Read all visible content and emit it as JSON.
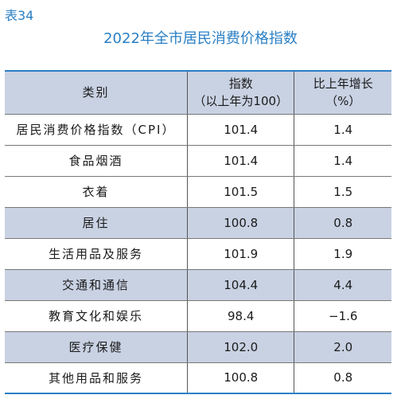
{
  "table_label": "表34",
  "title": "2022年全市居民消费价格指数",
  "headers": {
    "category": "类别",
    "index_line1": "指数",
    "index_line2": "（以上年为100）",
    "change_line1": "比上年增长",
    "change_line2": "（%）"
  },
  "rows": [
    {
      "category": "居民消费价格指数（CPI）",
      "index": "101.4",
      "change": "1.4"
    },
    {
      "category": "食品烟酒",
      "index": "101.4",
      "change": "1.4"
    },
    {
      "category": "衣着",
      "index": "101.5",
      "change": "1.5"
    },
    {
      "category": "居住",
      "index": "100.8",
      "change": "0.8"
    },
    {
      "category": "生活用品及服务",
      "index": "101.9",
      "change": "1.9"
    },
    {
      "category": "交通和通信",
      "index": "104.4",
      "change": "4.4"
    },
    {
      "category": "教育文化和娱乐",
      "index": "98.4",
      "change": "−1.6"
    },
    {
      "category": "医疗保健",
      "index": "102.0",
      "change": "2.0"
    },
    {
      "category": "其他用品和服务",
      "index": "100.8",
      "change": "0.8"
    }
  ]
}
